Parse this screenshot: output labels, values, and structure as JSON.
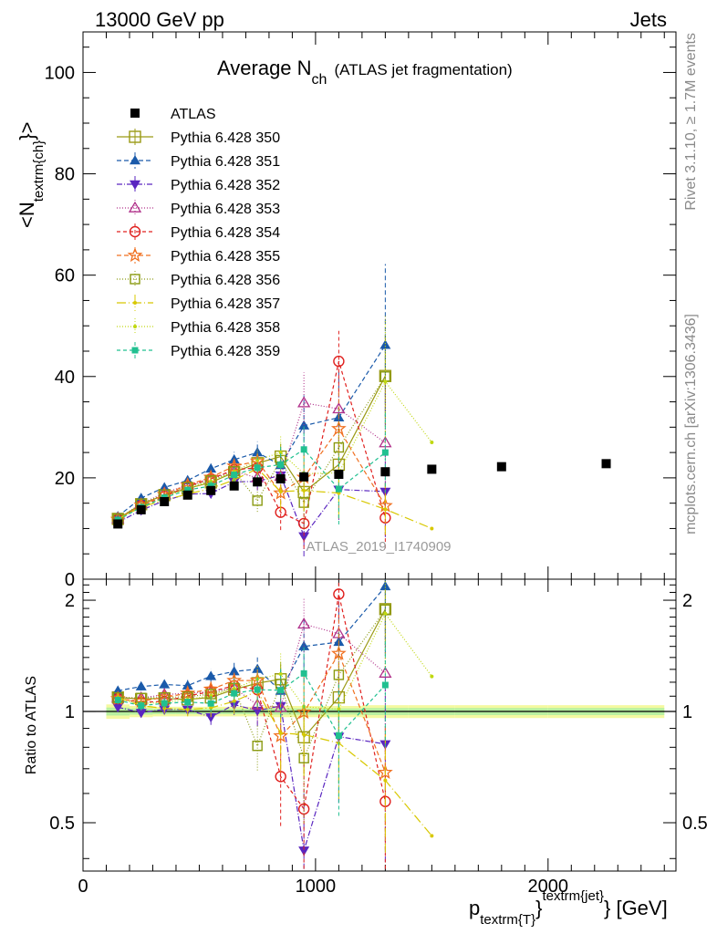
{
  "header": {
    "left": "13000 GeV pp",
    "right": "Jets"
  },
  "side_labels": {
    "rivet": "Rivet 3.1.10, ≥ 1.7M events",
    "mcplots": "mcplots.cern.ch [arXiv:1306.3436]"
  },
  "chart_data": {
    "type": "scatter",
    "title_main": "Average N",
    "title_sub": "ch",
    "title_note": "(ATLAS jet fragmentation)",
    "analysis_label": "ATLAS_2019_I1740909",
    "ylabel_main": "<N",
    "ylabel_sub": "textrm{ch}",
    "ylabel_end": "}>",
    "ratio_ylabel": "Ratio to ATLAS",
    "xlabel_main": "p",
    "xlabel_sub": "textrm{T}",
    "xlabel_close": "}",
    "xlabel_sup": "textrm{jet}",
    "xlabel_unit": "} [GeV]",
    "xlim": [
      0,
      2550
    ],
    "ylim": [
      0,
      108
    ],
    "ratio_ylim": [
      0.37,
      2.28
    ],
    "x_ticks": [
      {
        "v": 0,
        "label": "0"
      },
      {
        "v": 1000,
        "label": "1000"
      },
      {
        "v": 2000,
        "label": "2000"
      }
    ],
    "y_ticks": [
      {
        "v": 0,
        "label": "0"
      },
      {
        "v": 20,
        "label": "20"
      },
      {
        "v": 40,
        "label": "40"
      },
      {
        "v": 60,
        "label": "60"
      },
      {
        "v": 80,
        "label": "80"
      },
      {
        "v": 100,
        "label": "100"
      }
    ],
    "ratio_ticks": [
      {
        "v": 0.5,
        "label": "0.5"
      },
      {
        "v": 1,
        "label": "1"
      },
      {
        "v": 2,
        "label": "2"
      }
    ],
    "x": [
      150,
      250,
      350,
      450,
      550,
      650,
      750,
      850,
      950,
      1100,
      1300,
      1500,
      1800,
      2250
    ],
    "bin_edges": [
      100,
      200,
      300,
      400,
      500,
      600,
      700,
      800,
      900,
      1000,
      1200,
      1400,
      1600,
      2000,
      2500
    ],
    "data": {
      "name": "ATLAS",
      "values": [
        10.9,
        13.7,
        15.3,
        16.6,
        17.5,
        18.4,
        19.2,
        19.8,
        20.2,
        20.7,
        21.2,
        21.7,
        22.2,
        22.8
      ]
    },
    "series": [
      {
        "name": "Pythia 6.428 350",
        "color": "#9a9a14",
        "marker": "square-open",
        "dash": "",
        "values": [
          11.9,
          14.8,
          16.6,
          17.9,
          19.1,
          21.1,
          22.9,
          24.2,
          17.2,
          22.6,
          40.1,
          null,
          null,
          null
        ],
        "errors": [
          0.3,
          0.4,
          0.5,
          0.6,
          0.8,
          1.2,
          1.8,
          2.5,
          3.5,
          5,
          8
        ]
      },
      {
        "name": "Pythia 6.428 351",
        "color": "#1a5aaa",
        "marker": "triangle-up",
        "dash": "5,3",
        "values": [
          12.4,
          16.0,
          18.1,
          19.5,
          21.8,
          23.6,
          25.0,
          22.5,
          30.3,
          31.9,
          46.2,
          null,
          null,
          null
        ],
        "errors": [
          0.3,
          0.4,
          0.5,
          0.7,
          1.0,
          1.5,
          2.2,
          3.5,
          6,
          9,
          16
        ]
      },
      {
        "name": "Pythia 6.428 352",
        "color": "#5a26c0",
        "marker": "triangle-down",
        "dash": "6,2,1,2",
        "values": [
          11.2,
          13.6,
          15.5,
          16.8,
          16.9,
          19.2,
          19.3,
          20.5,
          8.5,
          17.7,
          17.3,
          null,
          null,
          null
        ],
        "errors": [
          0.3,
          0.4,
          0.5,
          0.6,
          0.8,
          1.2,
          1.8,
          2.8,
          4,
          6,
          9
        ]
      },
      {
        "name": "Pythia 6.428 353",
        "color": "#b0308a",
        "marker": "triangle-up-open",
        "dash": "1,2",
        "values": [
          11.9,
          14.9,
          17.0,
          18.6,
          19.8,
          21.3,
          20.0,
          20.3,
          34.8,
          33.6,
          26.9,
          null,
          null,
          null
        ],
        "errors": [
          0.3,
          0.4,
          0.5,
          0.7,
          1.0,
          1.5,
          2.2,
          3.5,
          6,
          9,
          12
        ]
      },
      {
        "name": "Pythia 6.428 354",
        "color": "#e0201e",
        "marker": "circle-open",
        "dash": "4,3",
        "values": [
          11.8,
          14.5,
          16.3,
          18.3,
          19.8,
          21.6,
          22.0,
          13.2,
          11.0,
          43.0,
          12.1,
          null,
          null,
          null
        ],
        "errors": [
          0.3,
          0.4,
          0.5,
          0.7,
          1.0,
          1.5,
          2.2,
          3.5,
          5,
          6,
          6
        ]
      },
      {
        "name": "Pythia 6.428 355",
        "color": "#f07020",
        "marker": "star-open",
        "dash": "5,3",
        "values": [
          11.8,
          14.6,
          16.7,
          18.6,
          20.1,
          22.3,
          23.3,
          17.0,
          20.1,
          29.7,
          14.5,
          null,
          null,
          null
        ],
        "errors": [
          0.3,
          0.4,
          0.5,
          0.7,
          1.0,
          1.5,
          2.2,
          3.5,
          5,
          8,
          5
        ]
      },
      {
        "name": "Pythia 6.428 356",
        "color": "#8a9a10",
        "marker": "square-open-small",
        "dash": "1,2",
        "values": [
          11.9,
          14.9,
          16.7,
          18.2,
          19.5,
          21.3,
          15.5,
          23.5,
          15.1,
          26.0,
          40.0,
          null,
          null,
          null
        ],
        "errors": [
          0.3,
          0.4,
          0.5,
          0.7,
          1.0,
          1.5,
          2.2,
          3.5,
          5,
          8,
          12
        ]
      },
      {
        "name": "Pythia 6.428 357",
        "color": "#d8c800",
        "marker": "dot",
        "dash": "10,3,1,3",
        "values": [
          11.9,
          14.2,
          15.6,
          16.8,
          17.9,
          19.6,
          21.8,
          17.3,
          17.5,
          17.0,
          13.8,
          10.0,
          null,
          null
        ],
        "errors": [
          0.3,
          0.4,
          0.5,
          0.7,
          1.0,
          1.5,
          2.2,
          3.5,
          4,
          5,
          5
        ]
      },
      {
        "name": "Pythia 6.428 358",
        "color": "#c0d810",
        "marker": "dot",
        "dash": "1,2",
        "values": [
          11.8,
          14.4,
          16.2,
          17.9,
          19.3,
          21.2,
          23.5,
          25.0,
          20.8,
          21.0,
          39.0,
          27.0,
          null,
          null
        ],
        "errors": [
          0.3,
          0.4,
          0.5,
          0.7,
          1.0,
          1.5,
          2.2,
          3.5,
          5,
          8,
          12
        ]
      },
      {
        "name": "Pythia 6.428 359",
        "color": "#20c090",
        "marker": "square-filled-small",
        "dash": "4,3",
        "values": [
          11.7,
          14.2,
          16.1,
          17.6,
          18.4,
          20.6,
          22.0,
          22.6,
          25.6,
          17.8,
          25.0,
          null,
          null,
          null
        ],
        "errors": [
          0.3,
          0.4,
          0.5,
          0.7,
          1.0,
          1.5,
          2.2,
          3.5,
          5,
          7,
          8
        ]
      }
    ]
  }
}
